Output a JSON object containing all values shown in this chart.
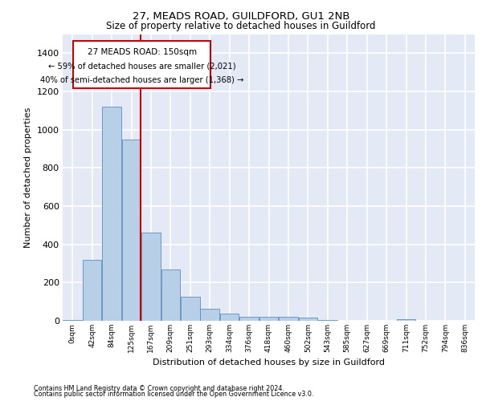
{
  "title1": "27, MEADS ROAD, GUILDFORD, GU1 2NB",
  "title2": "Size of property relative to detached houses in Guildford",
  "xlabel": "Distribution of detached houses by size in Guildford",
  "ylabel": "Number of detached properties",
  "footer1": "Contains HM Land Registry data © Crown copyright and database right 2024.",
  "footer2": "Contains public sector information licensed under the Open Government Licence v3.0.",
  "annotation_line1": "27 MEADS ROAD: 150sqm",
  "annotation_line2": "← 59% of detached houses are smaller (2,021)",
  "annotation_line3": "40% of semi-detached houses are larger (1,368) →",
  "bar_color": "#b8cfe8",
  "bar_edge_color": "#5b8ec4",
  "background_color": "#e4eaf5",
  "grid_color": "#ffffff",
  "vline_color": "#cc0000",
  "categories": [
    "0sqm",
    "42sqm",
    "84sqm",
    "125sqm",
    "167sqm",
    "209sqm",
    "251sqm",
    "293sqm",
    "334sqm",
    "376sqm",
    "418sqm",
    "460sqm",
    "502sqm",
    "543sqm",
    "585sqm",
    "627sqm",
    "669sqm",
    "711sqm",
    "752sqm",
    "794sqm",
    "836sqm"
  ],
  "values": [
    5,
    320,
    1120,
    950,
    460,
    270,
    125,
    65,
    38,
    20,
    20,
    20,
    15,
    5,
    0,
    0,
    0,
    10,
    0,
    0,
    0
  ],
  "vline_x": 3.47,
  "ylim": [
    0,
    1500
  ],
  "yticks": [
    0,
    200,
    400,
    600,
    800,
    1000,
    1200,
    1400
  ]
}
